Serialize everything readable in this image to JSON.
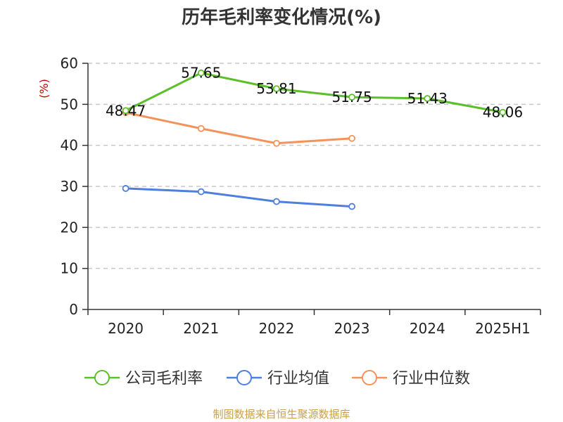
{
  "colors": {
    "company": "#5cbf2a",
    "industry_avg": "#4f7fde",
    "industry_median": "#f5925a",
    "unit": "#cc0000",
    "grid": "#c8c8c8",
    "axis": "#333333"
  },
  "source": "制图数据来自恒生聚源数据库",
  "chart_data": {
    "type": "line",
    "title": "历年毛利率变化情况(%)",
    "ylabel": "(%)",
    "xlabel": "",
    "categories": [
      "2020",
      "2021",
      "2022",
      "2023",
      "2024",
      "2025H1"
    ],
    "ylim": [
      0,
      60
    ],
    "yticks": [
      0,
      10,
      20,
      30,
      40,
      50,
      60
    ],
    "grid": true,
    "legend_position": "bottom",
    "series": [
      {
        "name": "公司毛利率",
        "values": [
          48.47,
          57.65,
          53.81,
          51.75,
          51.43,
          48.06
        ],
        "labels": [
          "48.47",
          "57.65",
          "53.81",
          "51.75",
          "51.43",
          "48.06"
        ]
      },
      {
        "name": "行业均值",
        "values": [
          29.5,
          28.7,
          26.3,
          25.1,
          null,
          null
        ]
      },
      {
        "name": "行业中位数",
        "values": [
          48.0,
          44.1,
          40.5,
          41.7,
          null,
          null
        ]
      }
    ]
  }
}
